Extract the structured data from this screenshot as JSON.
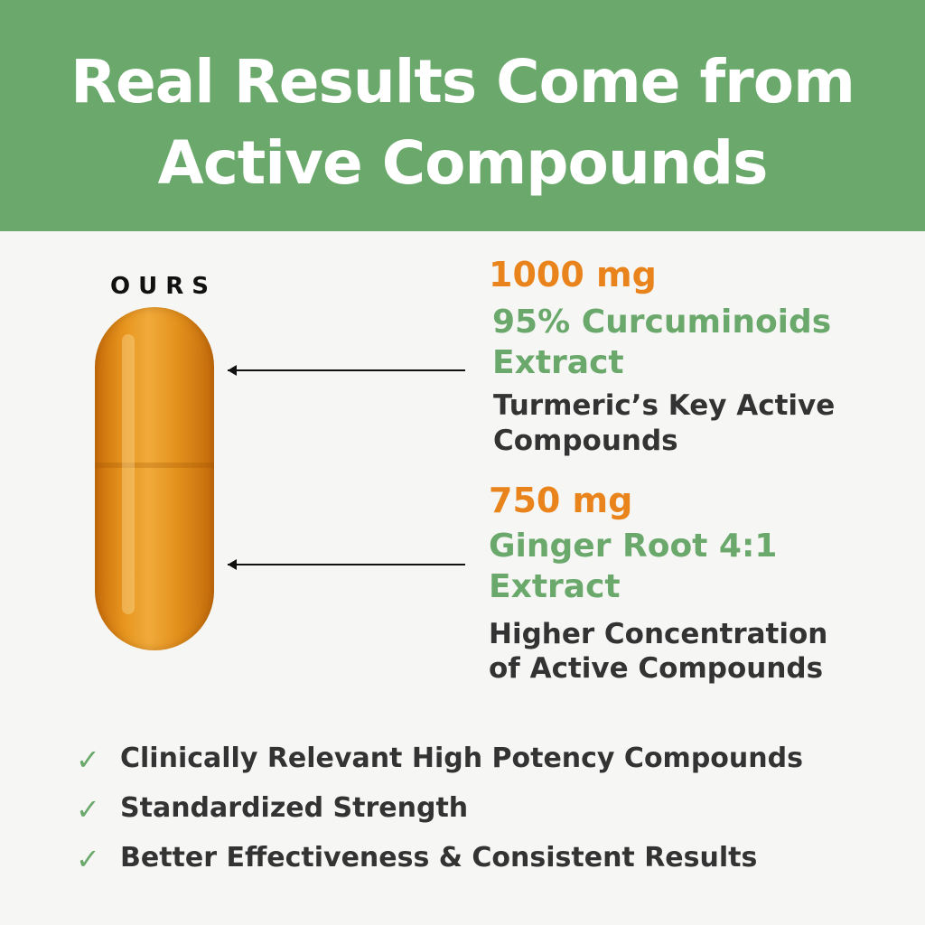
{
  "header": {
    "title_line1": "Real Results Come from",
    "title_line2": "Active Compounds",
    "background": "#6aa96b"
  },
  "product_label": "OURS",
  "ingredients": [
    {
      "amount": "1000 mg",
      "name_line1": "95% Curcuminoids",
      "name_line2": "Extract",
      "desc_line1": "Turmeric’s Key Active",
      "desc_line2": "Compounds"
    },
    {
      "amount": "750 mg",
      "name_line1": "Ginger Root 4:1",
      "name_line2": "Extract",
      "desc_line1": "Higher Concentration",
      "desc_line2": "of Active Compounds"
    }
  ],
  "benefits": [
    {
      "icon": "checkmark-icon",
      "text": "Clinically Relevant High Potency Compounds"
    },
    {
      "icon": "checkmark-icon",
      "text": "Standardized Strength"
    },
    {
      "icon": "checkmark-icon",
      "text": "Better Effectiveness & Consistent Results"
    }
  ],
  "colors": {
    "accent_orange": "#e9841c",
    "accent_green": "#6aa96b",
    "text_dark": "#333333"
  }
}
